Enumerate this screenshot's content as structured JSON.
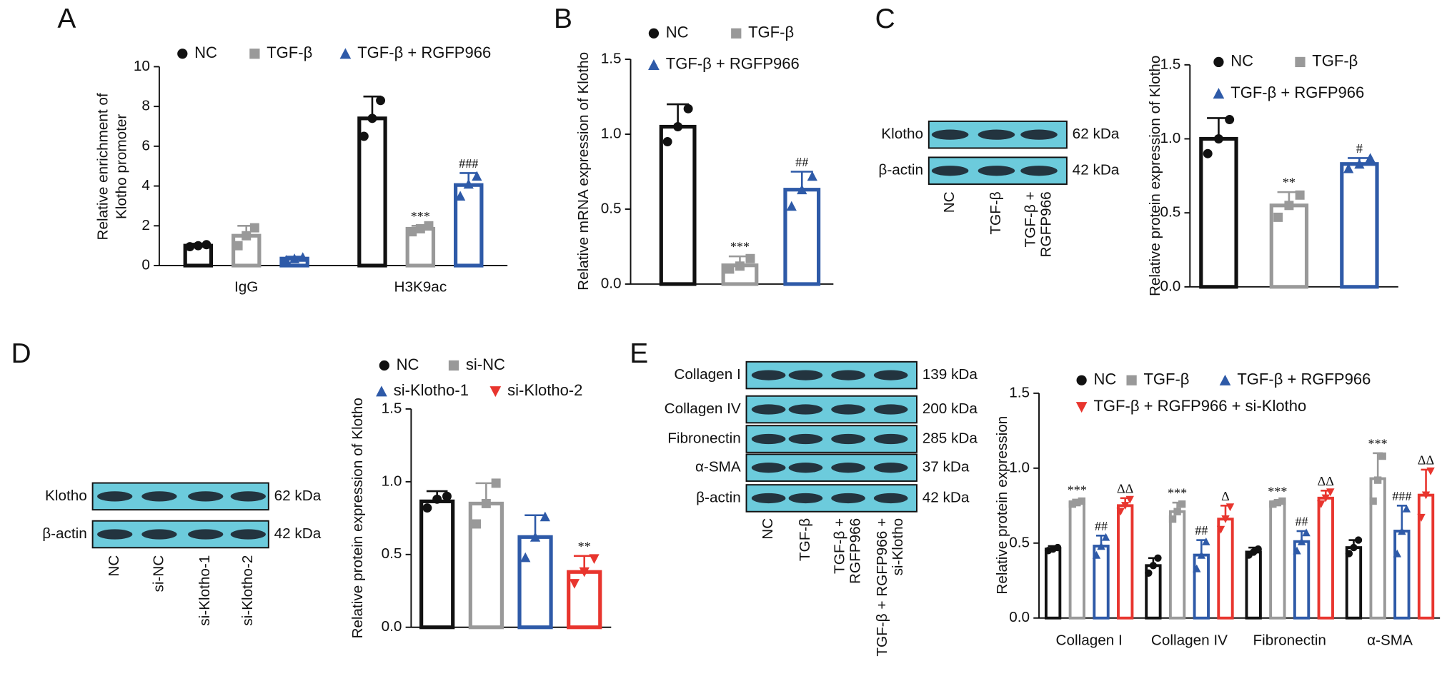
{
  "panels": [
    "A",
    "B",
    "C",
    "D",
    "E"
  ],
  "blots": [
    {
      "rows": [
        {
          "protein": "Klotho",
          "size": "62 kDa"
        },
        {
          "protein": "β-actin",
          "size": "42 kDa"
        }
      ],
      "lanes": [
        [
          "NC"
        ],
        [
          "TGF-β"
        ],
        [
          "TGF-β +",
          "RGFP966"
        ]
      ]
    },
    {
      "rows": [
        {
          "protein": "Klotho",
          "size": "62 kDa"
        },
        {
          "protein": "β-actin",
          "size": "42 kDa"
        }
      ],
      "lanes": [
        [
          "NC"
        ],
        [
          "si-NC"
        ],
        [
          "si-Klotho-1"
        ],
        [
          "si-Klotho-2"
        ]
      ]
    },
    {
      "rows": [
        {
          "protein": "Collagen I",
          "size": "139 kDa"
        },
        {
          "protein": "Collagen IV",
          "size": "200 kDa"
        },
        {
          "protein": "Fibronectin",
          "size": "285 kDa"
        },
        {
          "protein": "α-SMA",
          "size": "37 kDa"
        },
        {
          "protein": "β-actin",
          "size": "42 kDa"
        }
      ],
      "lanes": [
        [
          "NC"
        ],
        [
          "TGF-β"
        ],
        [
          "TGF-β +",
          "RGFP966"
        ],
        [
          "TGF-β + RGFP966 +",
          "si-Klotho"
        ]
      ]
    }
  ],
  "chart_data": [
    {
      "type": "bar",
      "ylabel": [
        "Relative enrichment of",
        "Klotho promoter"
      ],
      "categories": [
        "IgG",
        "H3K9ac"
      ],
      "ylim": [
        0,
        10
      ],
      "yticks": [
        0,
        2,
        4,
        6,
        8,
        10
      ],
      "series": [
        {
          "name": "NC",
          "color": "#111111",
          "marker": "circle",
          "values": [
            1.0,
            7.4
          ],
          "errors": [
            0.1,
            1.1
          ],
          "points": [
            [
              0.95,
              1.0,
              1.05
            ],
            [
              6.5,
              7.4,
              8.3
            ]
          ],
          "annotations": [
            null,
            null
          ]
        },
        {
          "name": "TGF-β",
          "color": "#999999",
          "marker": "square",
          "values": [
            1.5,
            1.85
          ],
          "errors": [
            0.5,
            0.15
          ],
          "points": [
            [
              1.0,
              1.5,
              1.9
            ],
            [
              1.7,
              1.85,
              2.0
            ]
          ],
          "annotations": [
            null,
            "***"
          ]
        },
        {
          "name": "TGF-β + RGFP966",
          "color": "#2e5aa8",
          "marker": "triangle-up",
          "values": [
            0.35,
            4.05
          ],
          "errors": [
            0.1,
            0.6
          ],
          "points": [
            [
              0.28,
              0.35,
              0.42
            ],
            [
              3.5,
              4.1,
              4.5
            ]
          ],
          "annotations": [
            null,
            "###"
          ]
        }
      ]
    },
    {
      "type": "bar",
      "ylabel": "Relative mRNA expression of Klotho",
      "categories": [
        null
      ],
      "ylim": [
        0,
        1.5
      ],
      "yticks": [
        {
          "value": 0,
          "label": "0.0"
        },
        0.5,
        {
          "value": 1,
          "label": "1.0"
        },
        1.5
      ],
      "series": [
        {
          "name": "NC",
          "color": "#111111",
          "marker": "circle",
          "values": [
            1.05
          ],
          "errors": [
            0.15
          ],
          "points": [
            [
              0.95,
              1.05,
              1.17
            ]
          ],
          "annotations": [
            null
          ]
        },
        {
          "name": "TGF-β",
          "color": "#999999",
          "marker": "square",
          "values": [
            0.125
          ],
          "errors": [
            0.06
          ],
          "points": [
            [
              0.1,
              0.12,
              0.17
            ]
          ],
          "annotations": [
            "***"
          ]
        },
        {
          "name": "TGF-β + RGFP966",
          "color": "#2e5aa8",
          "marker": "triangle-up",
          "values": [
            0.63
          ],
          "errors": [
            0.12
          ],
          "points": [
            [
              0.52,
              0.63,
              0.72
            ]
          ],
          "annotations": [
            "##"
          ]
        }
      ]
    },
    {
      "type": "bar",
      "ylabel": "Relative protein expression of Klotho",
      "categories": [
        null
      ],
      "ylim": [
        0,
        1.5
      ],
      "yticks": [
        {
          "value": 0,
          "label": "0.0"
        },
        0.5,
        {
          "value": 1,
          "label": "1.0"
        },
        1.5
      ],
      "series": [
        {
          "name": "NC",
          "color": "#111111",
          "marker": "circle",
          "values": [
            1.0
          ],
          "errors": [
            0.14
          ],
          "points": [
            [
              0.9,
              1.0,
              1.13
            ]
          ],
          "annotations": [
            null
          ]
        },
        {
          "name": "TGF-β",
          "color": "#999999",
          "marker": "square",
          "values": [
            0.55
          ],
          "errors": [
            0.09
          ],
          "points": [
            [
              0.47,
              0.55,
              0.62
            ]
          ],
          "annotations": [
            "**"
          ]
        },
        {
          "name": "TGF-β + RGFP966",
          "color": "#2e5aa8",
          "marker": "triangle-up",
          "values": [
            0.83
          ],
          "errors": [
            0.04
          ],
          "points": [
            [
              0.8,
              0.83,
              0.87
            ]
          ],
          "annotations": [
            "#"
          ]
        }
      ]
    },
    {
      "type": "bar",
      "ylabel": "Relative protein expression of Klotho",
      "categories": [
        null
      ],
      "ylim": [
        0,
        1.5
      ],
      "yticks": [
        {
          "value": 0,
          "label": "0.0"
        },
        0.5,
        {
          "value": 1,
          "label": "1.0"
        },
        1.5
      ],
      "series": [
        {
          "name": "NC",
          "color": "#111111",
          "marker": "circle",
          "values": [
            0.865
          ],
          "errors": [
            0.07
          ],
          "points": [
            [
              0.82,
              0.88,
              0.9
            ]
          ],
          "annotations": [
            null
          ]
        },
        {
          "name": "si-NC",
          "color": "#999999",
          "marker": "square",
          "values": [
            0.85
          ],
          "errors": [
            0.14
          ],
          "points": [
            [
              0.71,
              0.85,
              0.99
            ]
          ],
          "annotations": [
            null
          ]
        },
        {
          "name": "si-Klotho-1",
          "color": "#2e5aa8",
          "marker": "triangle-up",
          "values": [
            0.62
          ],
          "errors": [
            0.15
          ],
          "points": [
            [
              0.48,
              0.62,
              0.76
            ]
          ],
          "annotations": [
            null
          ]
        },
        {
          "name": "si-Klotho-2",
          "color": "#e8352e",
          "marker": "triangle-down",
          "values": [
            0.38
          ],
          "errors": [
            0.11
          ],
          "points": [
            [
              0.3,
              0.38,
              0.47
            ]
          ],
          "annotations": [
            "**"
          ]
        }
      ]
    },
    {
      "type": "bar",
      "ylabel": "Relative protein expression",
      "categories": [
        "Collagen I",
        "Collagen IV",
        "Fibronectin",
        "α-SMA"
      ],
      "ylim": [
        0,
        1.5
      ],
      "yticks": [
        {
          "value": 0,
          "label": "0.0"
        },
        0.5,
        {
          "value": 1,
          "label": "1.0"
        },
        1.5
      ],
      "series": [
        {
          "name": "NC",
          "color": "#111111",
          "marker": "circle",
          "values": [
            0.46,
            0.35,
            0.44,
            0.47
          ],
          "errors": [
            0.02,
            0.05,
            0.03,
            0.05
          ],
          "points": [
            [
              0.45,
              0.46,
              0.47
            ],
            [
              0.3,
              0.35,
              0.4
            ],
            [
              0.42,
              0.44,
              0.46
            ],
            [
              0.43,
              0.47,
              0.52
            ]
          ],
          "annotations": [
            null,
            null,
            null,
            null
          ]
        },
        {
          "name": "TGF-β",
          "color": "#999999",
          "marker": "square",
          "values": [
            0.77,
            0.71,
            0.77,
            0.93
          ],
          "errors": [
            0.02,
            0.06,
            0.01,
            0.17
          ],
          "points": [
            [
              0.76,
              0.77,
              0.78
            ],
            [
              0.66,
              0.71,
              0.76
            ],
            [
              0.76,
              0.77,
              0.78
            ],
            [
              0.78,
              0.92,
              1.08
            ]
          ],
          "annotations": [
            "***",
            "***",
            "***",
            "***"
          ]
        },
        {
          "name": "TGF-β + RGFP966",
          "color": "#2e5aa8",
          "marker": "triangle-up",
          "values": [
            0.48,
            0.42,
            0.51,
            0.58
          ],
          "errors": [
            0.07,
            0.1,
            0.07,
            0.17
          ],
          "points": [
            [
              0.42,
              0.48,
              0.54
            ],
            [
              0.33,
              0.42,
              0.51
            ],
            [
              0.45,
              0.51,
              0.57
            ],
            [
              0.43,
              0.58,
              0.73
            ]
          ],
          "annotations": [
            "##",
            "##",
            "##",
            "###"
          ]
        },
        {
          "name": "TGF-β + RGFP966 + si-Klotho",
          "color": "#e8352e",
          "marker": "triangle-down",
          "values": [
            0.75,
            0.66,
            0.8,
            0.82
          ],
          "errors": [
            0.05,
            0.09,
            0.05,
            0.17
          ],
          "points": [
            [
              0.71,
              0.75,
              0.79
            ],
            [
              0.59,
              0.66,
              0.74
            ],
            [
              0.76,
              0.8,
              0.84
            ],
            [
              0.67,
              0.82,
              0.98
            ]
          ],
          "annotations": [
            "ΔΔ",
            "Δ",
            "ΔΔ",
            "ΔΔ"
          ]
        }
      ]
    }
  ]
}
